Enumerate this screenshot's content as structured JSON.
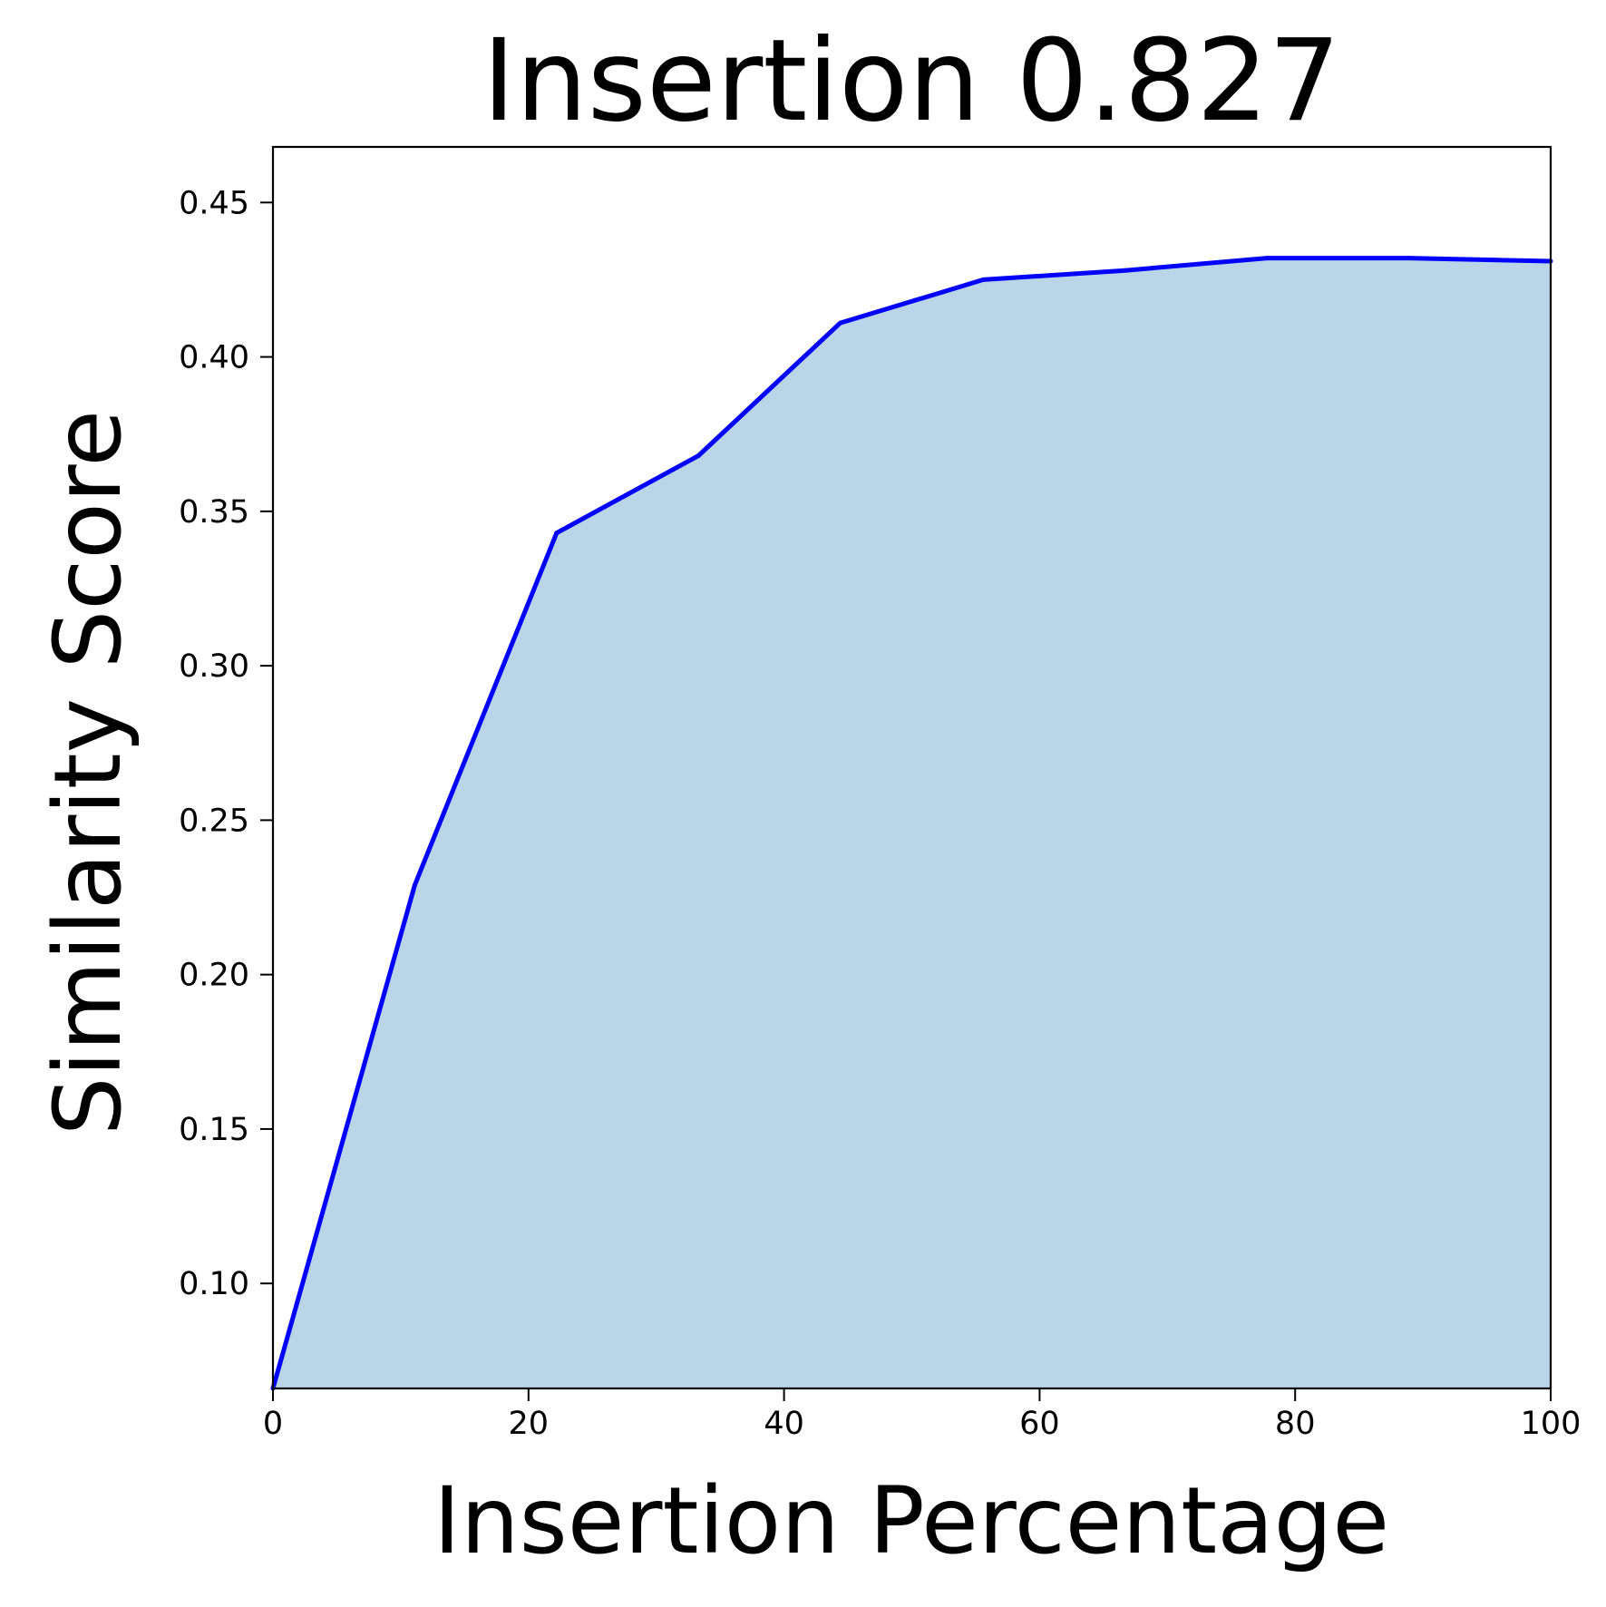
{
  "chart_data": {
    "type": "area",
    "title": "Insertion 0.827",
    "xlabel": "Insertion Percentage",
    "ylabel": "Similarity Score",
    "xlim": [
      0,
      100
    ],
    "ylim": [
      0.066,
      0.468
    ],
    "x_ticks": [
      0,
      20,
      40,
      60,
      80,
      100
    ],
    "x_tick_labels": [
      "0",
      "20",
      "40",
      "60",
      "80",
      "100"
    ],
    "y_ticks": [
      0.1,
      0.15,
      0.2,
      0.25,
      0.3,
      0.35,
      0.4,
      0.45
    ],
    "y_tick_labels": [
      "0.10",
      "0.15",
      "0.20",
      "0.25",
      "0.30",
      "0.35",
      "0.40",
      "0.45"
    ],
    "grid": false,
    "series": [
      {
        "x": [
          0,
          11.1,
          22.2,
          33.3,
          44.4,
          55.6,
          66.7,
          77.8,
          88.9,
          100
        ],
        "values": [
          0.066,
          0.229,
          0.343,
          0.368,
          0.411,
          0.425,
          0.428,
          0.432,
          0.432,
          0.431
        ],
        "line_color": "#0000ff",
        "fill_color": "#bad4e8"
      }
    ]
  }
}
